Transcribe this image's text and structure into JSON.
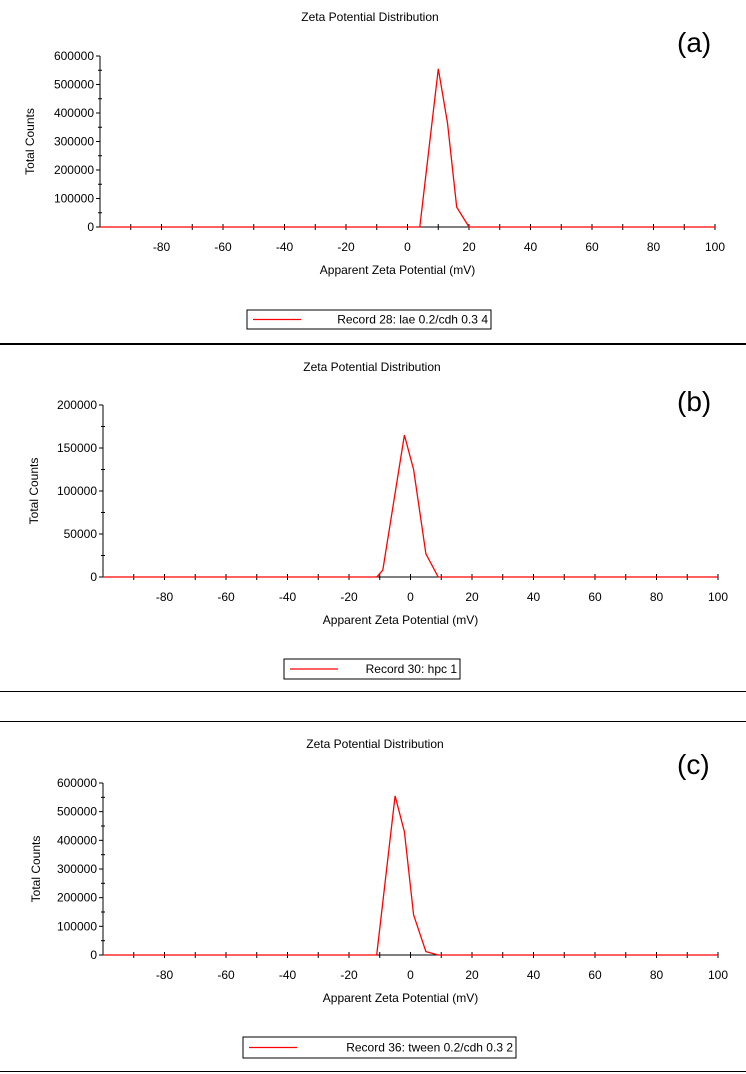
{
  "chart_data": [
    {
      "type": "line",
      "panel_label": "(a)",
      "title": "Zeta Potential Distribution",
      "xlabel": "Apparent Zeta Potential (mV)",
      "ylabel": "Total Counts",
      "xlim": [
        -100,
        100
      ],
      "ylim": [
        0,
        600000
      ],
      "xticks": [
        -80,
        -60,
        -40,
        -20,
        0,
        20,
        40,
        60,
        80,
        100
      ],
      "yticks": [
        0,
        100000,
        200000,
        300000,
        400000,
        500000,
        600000
      ],
      "grid": false,
      "legend_position": "bottom",
      "series": [
        {
          "name": "Record 28: lae 0.2/cdh 0.3 4",
          "color": "#ff0000",
          "x": [
            -100,
            4,
            10,
            13,
            16,
            20,
            100
          ],
          "y": [
            0,
            0,
            555000,
            365000,
            70000,
            0,
            0
          ]
        }
      ]
    },
    {
      "type": "line",
      "panel_label": "(b)",
      "title": "Zeta Potential Distribution",
      "xlabel": "Apparent Zeta Potential (mV)",
      "ylabel": "Total Counts",
      "xlim": [
        -100,
        100
      ],
      "ylim": [
        0,
        200000
      ],
      "xticks": [
        -80,
        -60,
        -40,
        -20,
        0,
        20,
        40,
        60,
        80,
        100
      ],
      "yticks": [
        0,
        50000,
        100000,
        150000,
        200000
      ],
      "grid": false,
      "legend_position": "bottom",
      "series": [
        {
          "name": "Record 30: hpc 1",
          "color": "#ff0000",
          "x": [
            -100,
            -11,
            -9,
            -2,
            1,
            5,
            9,
            100
          ],
          "y": [
            0,
            0,
            8000,
            165000,
            125000,
            27000,
            0,
            0
          ]
        }
      ]
    },
    {
      "type": "line",
      "panel_label": "(c)",
      "title": "Zeta Potential Distribution",
      "xlabel": "Apparent Zeta Potential (mV)",
      "ylabel": "Total Counts",
      "xlim": [
        -100,
        100
      ],
      "ylim": [
        0,
        600000
      ],
      "xticks": [
        -80,
        -60,
        -40,
        -20,
        0,
        20,
        40,
        60,
        80,
        100
      ],
      "yticks": [
        0,
        100000,
        200000,
        300000,
        400000,
        500000,
        600000
      ],
      "grid": false,
      "legend_position": "bottom",
      "series": [
        {
          "name": "Record 36: tween 0.2/cdh 0.3 2",
          "color": "#ff0000",
          "x": [
            -100,
            -11,
            -5,
            -2,
            1,
            5,
            9,
            100
          ],
          "y": [
            0,
            0,
            555000,
            430000,
            140000,
            12000,
            0,
            0
          ]
        }
      ]
    }
  ]
}
